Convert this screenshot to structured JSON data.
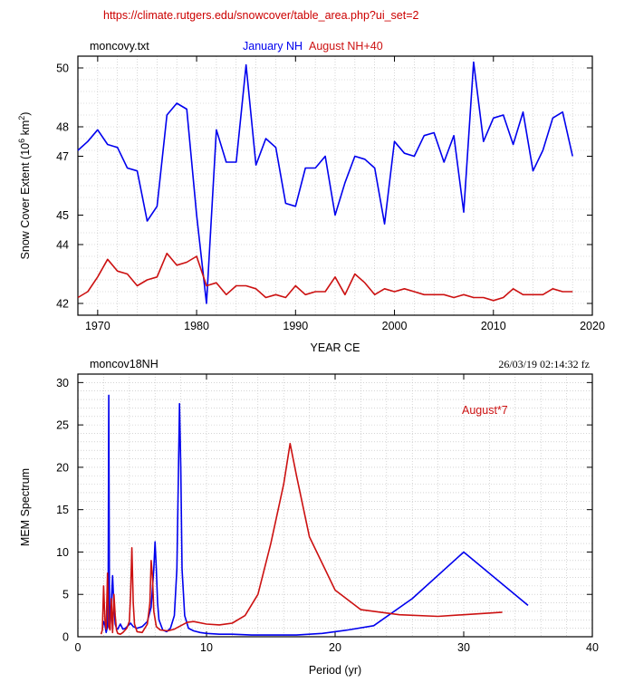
{
  "header": {
    "url": "https://climate.rutgers.edu/snowcover/table_area.php?ui_set=2",
    "url_color": "#cc0000"
  },
  "colors": {
    "blue": "#0000ee",
    "red": "#cc1111",
    "grid": "#bbbbbb"
  },
  "chart_data": [
    {
      "type": "line",
      "file_label": "moncovy.txt",
      "legend": [
        {
          "text": "January NH",
          "color": "#0000ee"
        },
        {
          "text": "August NH+40",
          "color": "#cc1111"
        }
      ],
      "xlabel": "YEAR CE",
      "ylabel": "Snow Cover Extent (10",
      "ylabel_sup1": "6",
      "ylabel_mid": " km",
      "ylabel_sup2": "2",
      "ylabel_end": ")",
      "xlim": [
        1968,
        2020
      ],
      "ylim": [
        41.6,
        50.4
      ],
      "xticks": [
        1970,
        1980,
        1990,
        2000,
        2010,
        2020
      ],
      "yticks": [
        42,
        44,
        45,
        47,
        48,
        50
      ],
      "series": [
        {
          "name": "January NH",
          "color": "#0000ee",
          "x": [
            1968,
            1969,
            1970,
            1971,
            1972,
            1973,
            1974,
            1975,
            1976,
            1977,
            1978,
            1979,
            1980,
            1981,
            1982,
            1983,
            1984,
            1985,
            1986,
            1987,
            1988,
            1989,
            1990,
            1991,
            1992,
            1993,
            1994,
            1995,
            1996,
            1997,
            1998,
            1999,
            2000,
            2001,
            2002,
            2003,
            2004,
            2005,
            2006,
            2007,
            2008,
            2009,
            2010,
            2011,
            2012,
            2013,
            2014,
            2015,
            2016,
            2017,
            2018
          ],
          "y": [
            47.2,
            47.5,
            47.9,
            47.4,
            47.3,
            46.6,
            46.5,
            44.8,
            45.3,
            48.4,
            48.8,
            48.6,
            45.0,
            42.0,
            47.9,
            46.8,
            46.8,
            50.1,
            46.7,
            47.6,
            47.3,
            45.4,
            45.3,
            46.6,
            46.6,
            47.0,
            45.0,
            46.1,
            47.0,
            46.9,
            46.6,
            44.7,
            47.5,
            47.1,
            47.0,
            47.7,
            47.8,
            46.8,
            47.7,
            45.1,
            50.2,
            47.5,
            48.3,
            48.4,
            47.4,
            48.5,
            46.5,
            47.2,
            48.3,
            48.5,
            47.0
          ]
        },
        {
          "name": "August NH+40",
          "color": "#cc1111",
          "x": [
            1968,
            1969,
            1970,
            1971,
            1972,
            1973,
            1974,
            1975,
            1976,
            1977,
            1978,
            1979,
            1980,
            1981,
            1982,
            1983,
            1984,
            1985,
            1986,
            1987,
            1988,
            1989,
            1990,
            1991,
            1992,
            1993,
            1994,
            1995,
            1996,
            1997,
            1998,
            1999,
            2000,
            2001,
            2002,
            2003,
            2004,
            2005,
            2006,
            2007,
            2008,
            2009,
            2010,
            2011,
            2012,
            2013,
            2014,
            2015,
            2016,
            2017,
            2018
          ],
          "y": [
            42.2,
            42.4,
            42.9,
            43.5,
            43.1,
            43.0,
            42.6,
            42.8,
            42.9,
            43.7,
            43.3,
            43.4,
            43.6,
            42.6,
            42.7,
            42.3,
            42.6,
            42.6,
            42.5,
            42.2,
            42.3,
            42.2,
            42.6,
            42.3,
            42.4,
            42.4,
            42.9,
            42.3,
            43.0,
            42.7,
            42.3,
            42.5,
            42.4,
            42.5,
            42.4,
            42.3,
            42.3,
            42.3,
            42.2,
            42.3,
            42.2,
            42.2,
            42.1,
            42.2,
            42.5,
            42.3,
            42.3,
            42.3,
            42.5,
            42.4,
            42.4
          ]
        }
      ]
    },
    {
      "type": "line",
      "file_label": "moncov18NH",
      "timestamp": "26/03/19  02:14:32 fz",
      "annotation": {
        "text": "August*7",
        "color": "#cc1111"
      },
      "xlabel": "Period (yr)",
      "ylabel": "MEM Spectrum",
      "xlim": [
        0,
        40
      ],
      "ylim": [
        0,
        31
      ],
      "xticks": [
        0,
        10,
        20,
        30,
        40
      ],
      "yticks": [
        0,
        5,
        10,
        15,
        20,
        25,
        30
      ],
      "series": [
        {
          "name": "January",
          "color": "#0000ee",
          "x": [
            1.9,
            2.0,
            2.1,
            2.2,
            2.3,
            2.35,
            2.4,
            2.45,
            2.5,
            2.6,
            2.7,
            2.8,
            2.9,
            3.0,
            3.1,
            3.2,
            3.3,
            3.5,
            3.7,
            3.9,
            4.1,
            4.3,
            4.6,
            5.0,
            5.4,
            5.7,
            5.9,
            6.0,
            6.1,
            6.2,
            6.3,
            6.6,
            6.9,
            7.2,
            7.5,
            7.7,
            7.8,
            7.9,
            8.0,
            8.1,
            8.3,
            8.6,
            9.0,
            9.5,
            10.0,
            11.0,
            12.0,
            13.5,
            15.0,
            17.0,
            19.0,
            21.0,
            23.0,
            26.0,
            30.0,
            35.0
          ],
          "y": [
            0.9,
            1.8,
            1.4,
            0.5,
            1.2,
            4.0,
            28.5,
            5.0,
            1.0,
            4.0,
            7.2,
            3.5,
            1.5,
            1.0,
            0.9,
            1.2,
            1.5,
            0.9,
            1.0,
            1.3,
            1.6,
            1.2,
            1.0,
            1.2,
            1.8,
            3.5,
            8.0,
            11.2,
            8.0,
            4.0,
            2.0,
            0.8,
            0.6,
            1.0,
            2.5,
            8.0,
            18.0,
            27.5,
            20.0,
            8.0,
            2.5,
            1.0,
            0.7,
            0.5,
            0.4,
            0.3,
            0.3,
            0.2,
            0.2,
            0.2,
            0.4,
            0.8,
            1.3,
            4.5,
            10.0,
            3.7
          ]
        },
        {
          "name": "August*7",
          "color": "#cc1111",
          "x": [
            1.8,
            1.9,
            2.0,
            2.1,
            2.2,
            2.3,
            2.4,
            2.5,
            2.6,
            2.7,
            2.8,
            2.9,
            3.0,
            3.1,
            3.3,
            3.5,
            3.8,
            4.0,
            4.1,
            4.2,
            4.3,
            4.4,
            4.6,
            5.0,
            5.4,
            5.6,
            5.7,
            5.8,
            5.9,
            6.1,
            6.4,
            7.0,
            7.5,
            8.0,
            8.5,
            9.0,
            10.0,
            11.0,
            12.0,
            13.0,
            14.0,
            15.0,
            16.0,
            16.5,
            17.0,
            18.0,
            20.0,
            22.0,
            25.0,
            28.0,
            33.0
          ],
          "y": [
            0.3,
            0.8,
            6.0,
            2.0,
            0.9,
            7.5,
            1.2,
            0.8,
            4.5,
            0.5,
            5.0,
            2.5,
            0.8,
            0.4,
            0.3,
            0.5,
            1.0,
            1.8,
            5.0,
            10.5,
            4.0,
            1.5,
            0.6,
            0.5,
            1.5,
            4.0,
            9.0,
            7.0,
            3.0,
            1.2,
            0.8,
            0.7,
            0.9,
            1.3,
            1.7,
            1.8,
            1.5,
            1.4,
            1.6,
            2.5,
            5.0,
            11.0,
            18.0,
            22.8,
            19.0,
            11.8,
            5.5,
            3.2,
            2.6,
            2.4,
            2.9
          ]
        }
      ]
    }
  ]
}
